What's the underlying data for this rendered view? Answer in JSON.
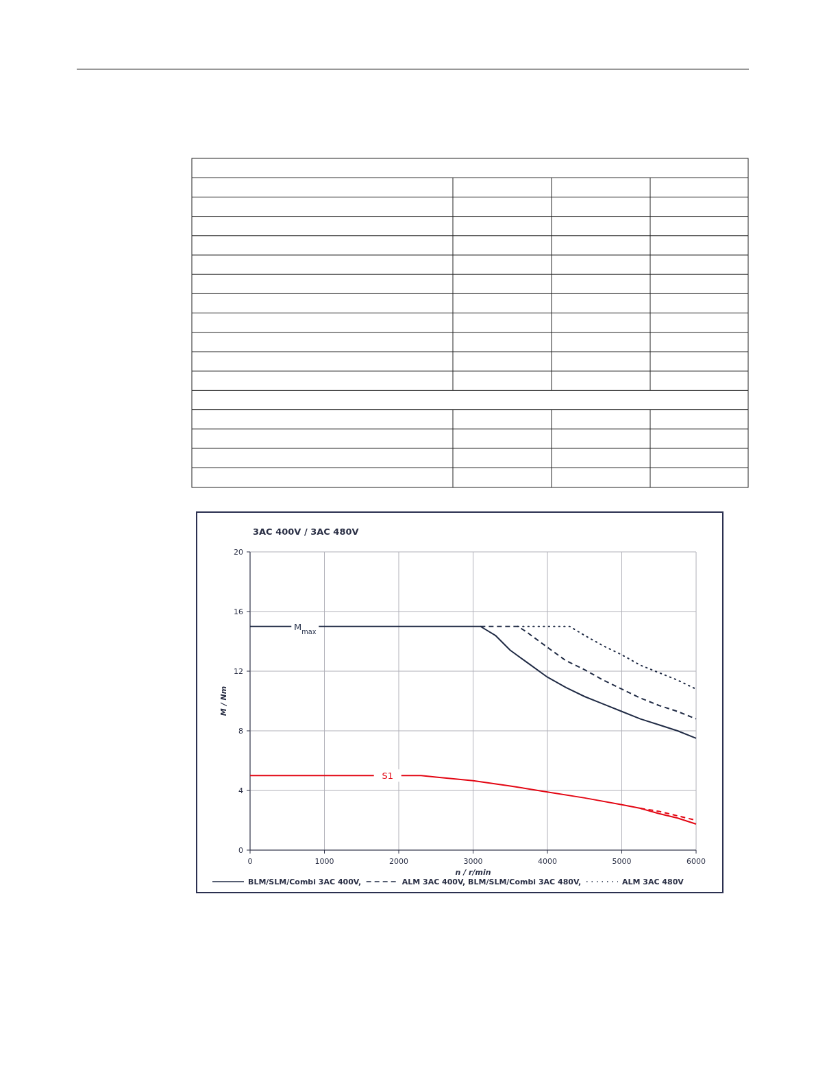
{
  "chart_data": {
    "type": "line",
    "title": "3AC 400V / 3AC 480V",
    "xlabel": "n / r/min",
    "ylabel": "M / Nm",
    "xlim": [
      0,
      6000
    ],
    "xticks": [
      0,
      1000,
      2000,
      3000,
      4000,
      5000,
      6000
    ],
    "ylim": [
      0,
      20
    ],
    "yticks": [
      0,
      4,
      8,
      12,
      16,
      20
    ],
    "grid": true,
    "legend": "bottom",
    "series": [
      {
        "name": "BLM/SLM/Combi 3AC 400V,",
        "color": "#1f2a44",
        "line_style": "solid",
        "x": [
          0,
          3100,
          3300,
          3500,
          3750,
          4000,
          4250,
          4500,
          4750,
          5000,
          5250,
          5500,
          5750,
          6000
        ],
        "values": [
          15,
          15,
          14.4,
          13.4,
          12.5,
          11.6,
          10.9,
          10.3,
          9.8,
          9.3,
          8.8,
          8.4,
          8.0,
          7.5
        ]
      },
      {
        "name": "ALM 3AC 400V, BLM/SLM/Combi 3AC 480V,",
        "color": "#1f2a44",
        "line_style": "dashed",
        "x": [
          3100,
          3600,
          3700,
          4000,
          4250,
          4500,
          4750,
          5000,
          5250,
          5500,
          5750,
          6000
        ],
        "values": [
          15,
          15,
          14.7,
          13.6,
          12.7,
          12.1,
          11.4,
          10.8,
          10.2,
          9.7,
          9.3,
          8.8
        ]
      },
      {
        "name": "ALM 3AC 480V",
        "color": "#1f2a44",
        "line_style": "dotted",
        "x": [
          3600,
          4300,
          4500,
          4750,
          5000,
          5250,
          5500,
          5750,
          6000
        ],
        "values": [
          15,
          15,
          14.4,
          13.7,
          13.1,
          12.4,
          11.9,
          11.4,
          10.8
        ]
      },
      {
        "color": "#e30613",
        "line_style": "solid",
        "x": [
          0,
          2300,
          2500,
          3000,
          3500,
          4000,
          4500,
          5000,
          5250,
          5500,
          5750,
          6000
        ],
        "values": [
          5,
          5,
          4.9,
          4.65,
          4.3,
          3.9,
          3.5,
          3.05,
          2.8,
          2.45,
          2.15,
          1.75
        ]
      },
      {
        "color": "#e30613",
        "line_style": "dashed",
        "x": [
          5250,
          5500,
          6000
        ],
        "values": [
          2.8,
          2.6,
          2.0
        ]
      }
    ],
    "annotations": [
      {
        "text": "M$_{max}$",
        "x": 740,
        "y": 15
      },
      {
        "text": "S1",
        "x": 1850,
        "y": 5
      }
    ]
  }
}
